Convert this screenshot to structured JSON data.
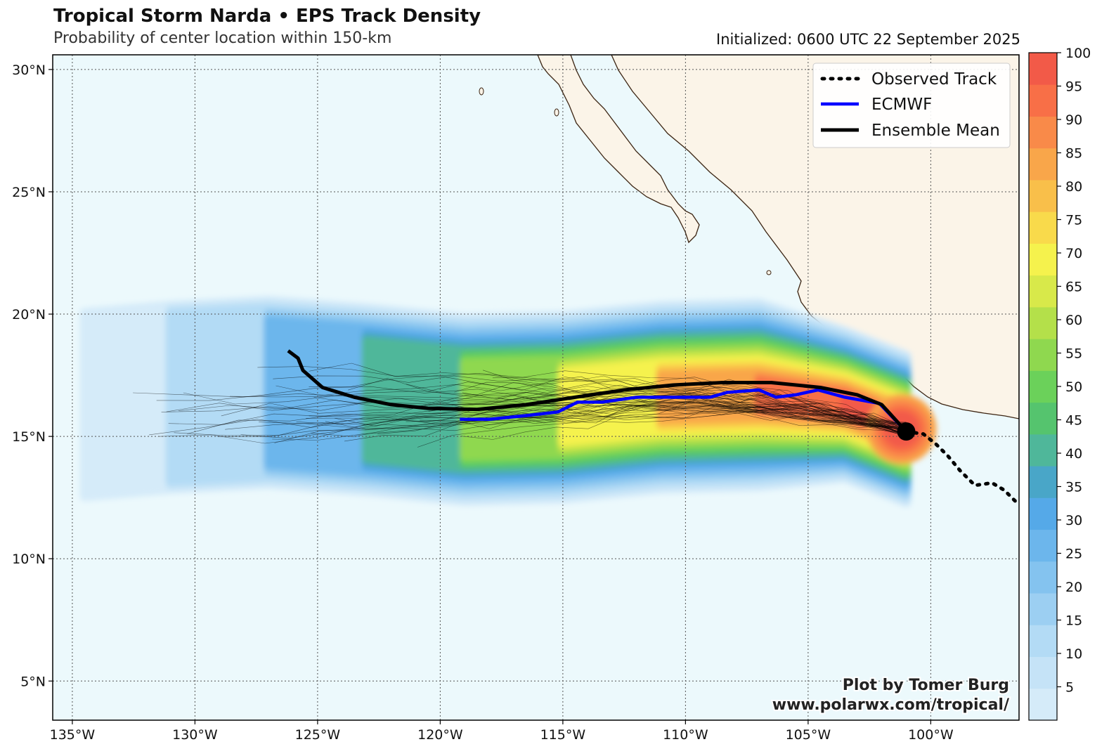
{
  "title": "Tropical Storm Narda • EPS Track Density",
  "subtitle": "Probability of center location within 150-km",
  "initialized": "Initialized: 0600 UTC 22 September 2025",
  "credit": {
    "line1": "Plot by Tomer Burg",
    "line2": "www.polarwx.com/tropical/"
  },
  "map": {
    "lon_range": [
      -135.8,
      -96.4
    ],
    "lat_range": [
      3.4,
      30.6
    ],
    "lon_ticks": [
      {
        "value": -135,
        "label": "135°W"
      },
      {
        "value": -130,
        "label": "130°W"
      },
      {
        "value": -125,
        "label": "125°W"
      },
      {
        "value": -120,
        "label": "120°W"
      },
      {
        "value": -115,
        "label": "115°W"
      },
      {
        "value": -110,
        "label": "110°W"
      },
      {
        "value": -105,
        "label": "105°W"
      },
      {
        "value": -100,
        "label": "100°W"
      }
    ],
    "lat_ticks": [
      {
        "value": 30,
        "label": "30°N"
      },
      {
        "value": 25,
        "label": "25°N"
      },
      {
        "value": 20,
        "label": "20°N"
      },
      {
        "value": 15,
        "label": "15°N"
      },
      {
        "value": 10,
        "label": "10°N"
      },
      {
        "value": 5,
        "label": "5°N"
      }
    ],
    "ocean_color": "#ecf9fc",
    "land_color": "#fbf4e8",
    "coast_color": "#3b2412"
  },
  "legend": [
    {
      "label": "Observed Track",
      "style": "dotted",
      "color": "#000000"
    },
    {
      "label": "ECMWF",
      "style": "solid",
      "color": "#0000ff"
    },
    {
      "label": "Ensemble Mean",
      "style": "solid",
      "color": "#000000"
    }
  ],
  "colorbar": {
    "ticks": [
      "100",
      "95",
      "90",
      "85",
      "80",
      "75",
      "70",
      "65",
      "60",
      "55",
      "50",
      "45",
      "40",
      "35",
      "30",
      "25",
      "20",
      "15",
      "10",
      "5"
    ],
    "levels": [
      0,
      5,
      10,
      15,
      20,
      25,
      30,
      35,
      40,
      45,
      50,
      55,
      60,
      65,
      70,
      75,
      80,
      85,
      90,
      95,
      100
    ],
    "colors": [
      "#d5ebf9",
      "#c5e3f7",
      "#b3dbf5",
      "#9ccff2",
      "#84c3ef",
      "#6cb6ec",
      "#55a9e8",
      "#49a6c8",
      "#4fb79a",
      "#55c46e",
      "#6bd15a",
      "#8fd84f",
      "#b4e04a",
      "#d8e94a",
      "#f5f24d",
      "#f9da4b",
      "#f9bf4a",
      "#f9a64a",
      "#f98a49",
      "#f86f47",
      "#f25a48"
    ]
  },
  "storm": {
    "name": "Narda",
    "current_center": {
      "lon": -101.0,
      "lat": 15.2
    }
  },
  "tracks": {
    "ensemble_mean": [
      [
        -126.2,
        18.5
      ],
      [
        -125.8,
        18.2
      ],
      [
        -125.6,
        17.7
      ],
      [
        -124.8,
        17.0
      ],
      [
        -123.5,
        16.6
      ],
      [
        -122.0,
        16.3
      ],
      [
        -120.5,
        16.15
      ],
      [
        -118.5,
        16.1
      ],
      [
        -116.5,
        16.3
      ],
      [
        -114.5,
        16.6
      ],
      [
        -112.5,
        16.9
      ],
      [
        -110.5,
        17.1
      ],
      [
        -108.5,
        17.2
      ],
      [
        -106.5,
        17.2
      ],
      [
        -104.5,
        17.0
      ],
      [
        -103.0,
        16.7
      ],
      [
        -102.0,
        16.3
      ],
      [
        -101.0,
        15.2
      ]
    ],
    "ecmwf": [
      [
        -119.2,
        15.7
      ],
      [
        -118.0,
        15.7
      ],
      [
        -116.5,
        15.85
      ],
      [
        -115.2,
        16.0
      ],
      [
        -114.4,
        16.4
      ],
      [
        -113.4,
        16.4
      ],
      [
        -112.0,
        16.6
      ],
      [
        -110.5,
        16.6
      ],
      [
        -109.0,
        16.6
      ],
      [
        -108.3,
        16.8
      ],
      [
        -107.0,
        16.9
      ],
      [
        -106.3,
        16.6
      ],
      [
        -105.5,
        16.7
      ],
      [
        -104.6,
        16.9
      ],
      [
        -103.5,
        16.6
      ],
      [
        -102.1,
        16.35
      ],
      [
        -101.0,
        15.2
      ]
    ],
    "observed": [
      [
        -101.0,
        15.2
      ],
      [
        -100.3,
        15.1
      ],
      [
        -99.8,
        14.7
      ],
      [
        -99.3,
        14.2
      ],
      [
        -98.8,
        13.6
      ],
      [
        -98.2,
        13.0
      ],
      [
        -97.5,
        13.1
      ],
      [
        -97.0,
        12.8
      ],
      [
        -96.5,
        12.3
      ]
    ]
  }
}
